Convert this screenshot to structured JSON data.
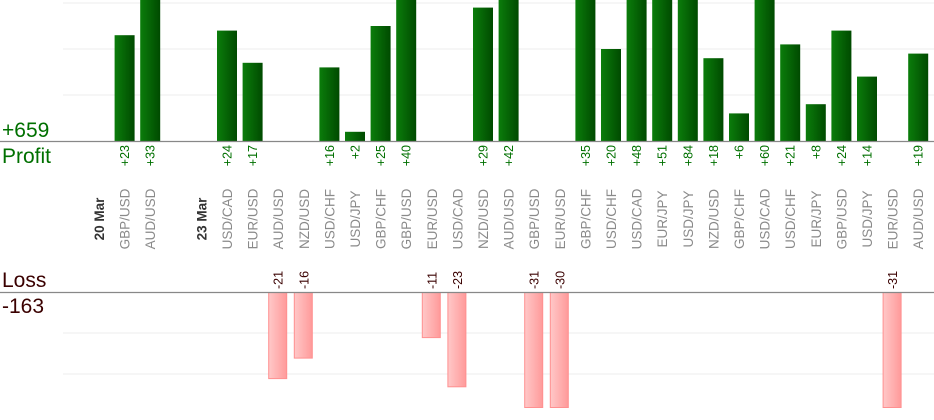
{
  "chart_data": {
    "type": "bar",
    "title": "",
    "profit_label": "Profit",
    "loss_label": "Loss",
    "profit_total": "+659",
    "loss_total": "-163",
    "profit_ylim": [
      0,
      30
    ],
    "loss_ylim": [
      -28,
      0
    ],
    "grid": true,
    "colors": {
      "profit": "#006600",
      "loss": "#ff9f9f",
      "profit_text": "#007000",
      "loss_text": "#3a0000"
    },
    "items": [
      {
        "type": "date",
        "label": "20 Mar"
      },
      {
        "type": "trade",
        "label": "GBP/USD",
        "value": 23
      },
      {
        "type": "trade",
        "label": "AUD/USD",
        "value": 33
      },
      {
        "type": "gap"
      },
      {
        "type": "date",
        "label": "23 Mar"
      },
      {
        "type": "trade",
        "label": "USD/CAD",
        "value": 24
      },
      {
        "type": "trade",
        "label": "EUR/USD",
        "value": 17
      },
      {
        "type": "trade",
        "label": "AUD/USD",
        "value": -21
      },
      {
        "type": "trade",
        "label": "NZD/USD",
        "value": -16
      },
      {
        "type": "trade",
        "label": "USD/CHF",
        "value": 16
      },
      {
        "type": "trade",
        "label": "USD/JPY",
        "value": 2
      },
      {
        "type": "trade",
        "label": "GBP/CHF",
        "value": 25
      },
      {
        "type": "trade",
        "label": "GBP/USD",
        "value": 40
      },
      {
        "type": "trade",
        "label": "EUR/USD",
        "value": -11
      },
      {
        "type": "trade",
        "label": "USD/CAD",
        "value": -23
      },
      {
        "type": "trade",
        "label": "NZD/USD",
        "value": 29
      },
      {
        "type": "trade",
        "label": "AUD/USD",
        "value": 42
      },
      {
        "type": "trade",
        "label": "GBP/USD",
        "value": -31
      },
      {
        "type": "trade",
        "label": "EUR/USD",
        "value": -30
      },
      {
        "type": "trade",
        "label": "GBP/CHF",
        "value": 35
      },
      {
        "type": "trade",
        "label": "USD/CHF",
        "value": 20
      },
      {
        "type": "trade",
        "label": "USD/CAD",
        "value": 48
      },
      {
        "type": "trade",
        "label": "EUR/JPY",
        "value": 51
      },
      {
        "type": "trade",
        "label": "USD/JPY",
        "value": 84
      },
      {
        "type": "trade",
        "label": "NZD/USD",
        "value": 18
      },
      {
        "type": "trade",
        "label": "GBP/CHF",
        "value": 6
      },
      {
        "type": "trade",
        "label": "USD/CAD",
        "value": 60
      },
      {
        "type": "trade",
        "label": "USD/CHF",
        "value": 21
      },
      {
        "type": "trade",
        "label": "EUR/JPY",
        "value": 8
      },
      {
        "type": "trade",
        "label": "GBP/USD",
        "value": 24
      },
      {
        "type": "trade",
        "label": "USD/JPY",
        "value": 14
      },
      {
        "type": "trade",
        "label": "EUR/USD",
        "value": -31
      },
      {
        "type": "trade",
        "label": "AUD/USD",
        "value": 19
      }
    ]
  }
}
